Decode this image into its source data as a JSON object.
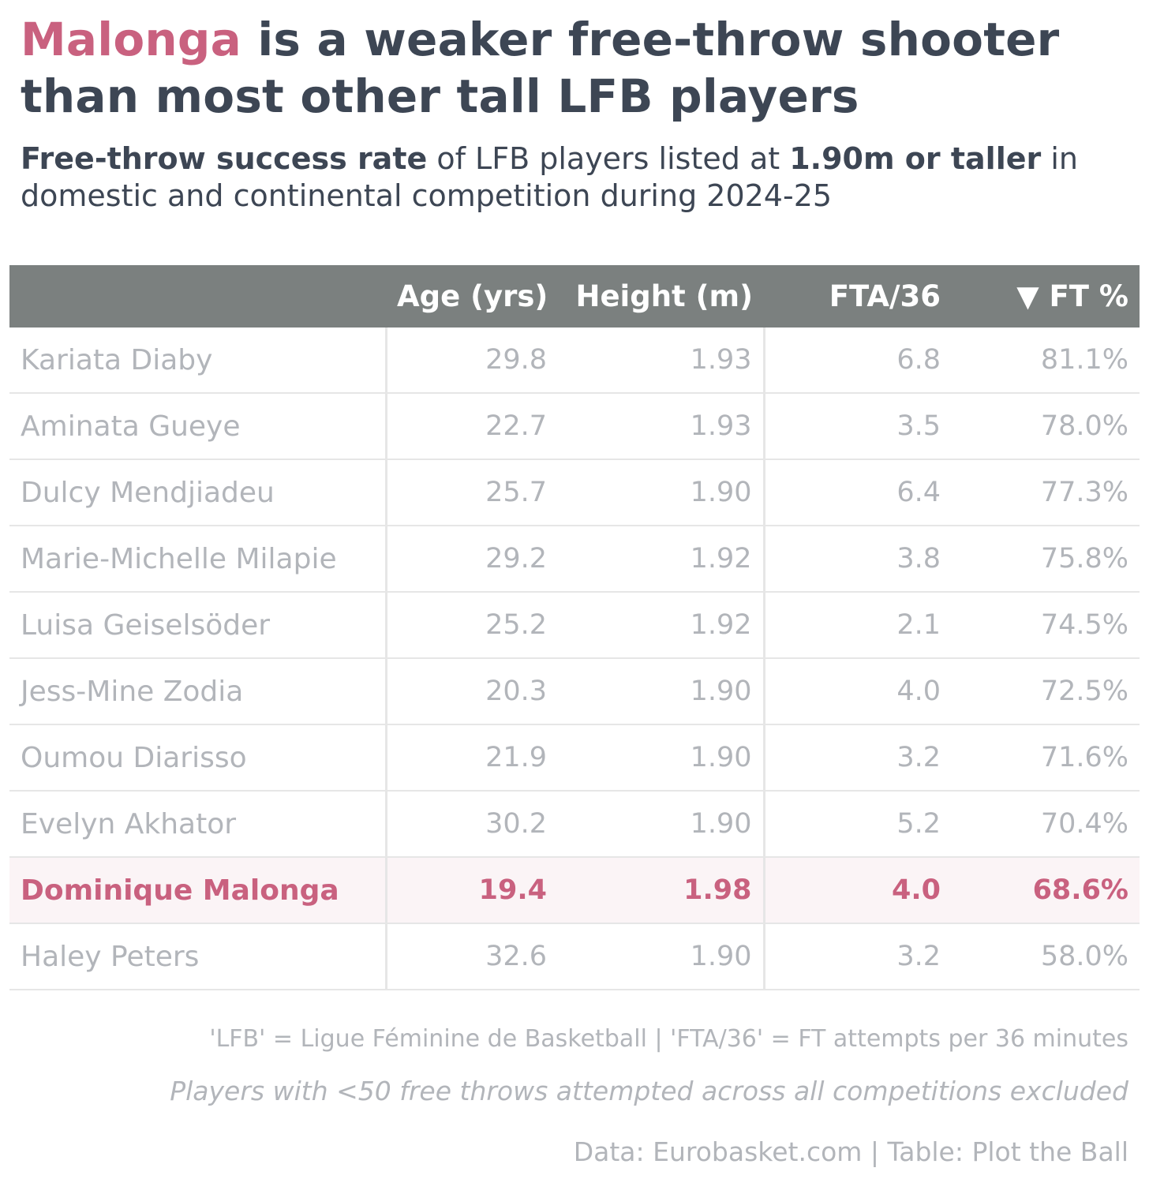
{
  "header": {
    "title_highlight": "Malonga",
    "title_rest": " is a weaker free-throw shooter than most other tall LFB players",
    "subtitle_bold_1": "Free-throw success rate",
    "subtitle_mid": " of LFB players listed at ",
    "subtitle_bold_2": "1.90m or taller",
    "subtitle_end": " in domestic and continental competition during 2024-25"
  },
  "colors": {
    "highlight": "#c9617f",
    "header_bg": "#7b807f",
    "text_dark": "#3d4654",
    "text_muted": "#b2b5ba",
    "highlight_row_bg": "#fbf4f6"
  },
  "chart_data": {
    "type": "table",
    "columns": [
      "",
      "Age (yrs)",
      "Height (m)",
      "FTA/36",
      "▼ FT %"
    ],
    "sort": {
      "column": "FT %",
      "direction": "descending"
    },
    "highlighted_player": "Dominique Malonga",
    "rows": [
      {
        "name": "Kariata Diaby",
        "age": "29.8",
        "height": "1.93",
        "fta36": "6.8",
        "ft_pct": "81.1%"
      },
      {
        "name": "Aminata Gueye",
        "age": "22.7",
        "height": "1.93",
        "fta36": "3.5",
        "ft_pct": "78.0%"
      },
      {
        "name": "Dulcy Mendjiadeu",
        "age": "25.7",
        "height": "1.90",
        "fta36": "6.4",
        "ft_pct": "77.3%"
      },
      {
        "name": "Marie-Michelle Milapie",
        "age": "29.2",
        "height": "1.92",
        "fta36": "3.8",
        "ft_pct": "75.8%"
      },
      {
        "name": "Luisa Geiselsöder",
        "age": "25.2",
        "height": "1.92",
        "fta36": "2.1",
        "ft_pct": "74.5%"
      },
      {
        "name": "Jess-Mine Zodia",
        "age": "20.3",
        "height": "1.90",
        "fta36": "4.0",
        "ft_pct": "72.5%"
      },
      {
        "name": "Oumou Diarisso",
        "age": "21.9",
        "height": "1.90",
        "fta36": "3.2",
        "ft_pct": "71.6%"
      },
      {
        "name": "Evelyn Akhator",
        "age": "30.2",
        "height": "1.90",
        "fta36": "5.2",
        "ft_pct": "70.4%"
      },
      {
        "name": "Dominique Malonga",
        "age": "19.4",
        "height": "1.98",
        "fta36": "4.0",
        "ft_pct": "68.6%"
      },
      {
        "name": "Haley Peters",
        "age": "32.6",
        "height": "1.90",
        "fta36": "3.2",
        "ft_pct": "58.0%"
      }
    ]
  },
  "footer": {
    "note_1": "'LFB' = Ligue Féminine de Basketball | 'FTA/36' = FT attempts per 36 minutes",
    "note_2": "Players with <50 free throws attempted across all competitions excluded",
    "source": "Data: Eurobasket.com | Table: Plot the Ball"
  }
}
